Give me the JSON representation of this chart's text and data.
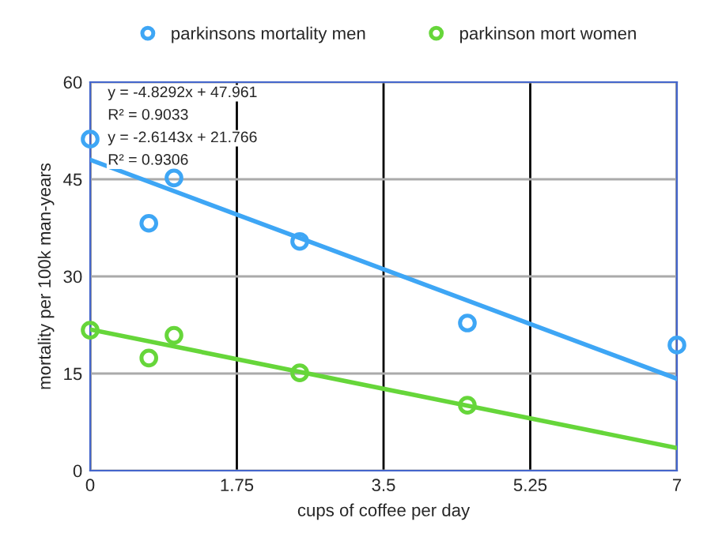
{
  "chart_data": {
    "type": "scatter",
    "xlabel": "cups of coffee per day",
    "ylabel": "mortality per 100k man-years",
    "xlim": [
      0,
      7
    ],
    "xticks": [
      0,
      1.75,
      3.5,
      5.25,
      7
    ],
    "ylim": [
      0,
      60
    ],
    "yticks": [
      0,
      15,
      30,
      45,
      60
    ],
    "grid": true,
    "legend": "top",
    "series": [
      {
        "name": "parkinsons mortality men",
        "color": "#3ea6f5",
        "marker": "circle",
        "x": [
          0,
          0.7,
          1,
          2.5,
          4.5,
          7
        ],
        "values": [
          51.2,
          38.2,
          45.2,
          35.4,
          22.8,
          19.4
        ]
      },
      {
        "name": "parkinson mort women",
        "color": "#66d63a",
        "marker": "circle",
        "x": [
          0,
          0.7,
          1,
          2.5,
          4.5
        ],
        "values": [
          21.7,
          17.4,
          20.9,
          15.1,
          10.1
        ]
      },
      {
        "type": "line",
        "color": "#3ea6f5",
        "marker": "none",
        "x": [
          0,
          7
        ],
        "values": [
          48.0,
          14.2
        ]
      },
      {
        "type": "line",
        "color": "#66d63a",
        "marker": "none",
        "x": [
          0,
          7
        ],
        "values": [
          21.8,
          3.5
        ]
      }
    ],
    "annotations": [
      "y = -4.8292x + 47.961",
      "R² = 0.9033",
      "y = -2.6143x + 21.766",
      "R² = 0.9306"
    ]
  }
}
